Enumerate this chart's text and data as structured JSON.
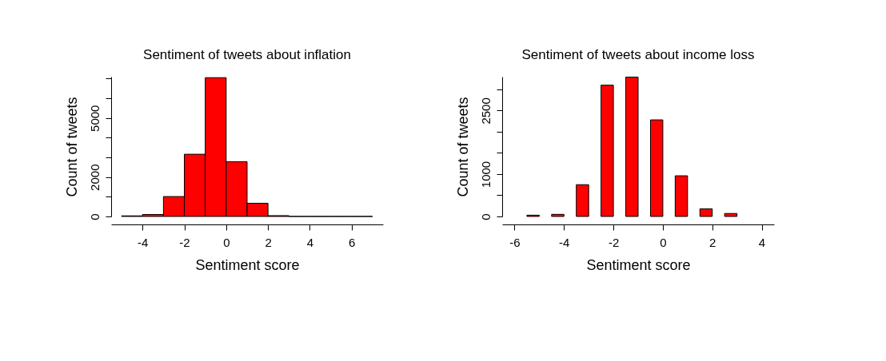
{
  "chart_data": [
    {
      "type": "histogram",
      "title": "Sentiment of tweets about inflation",
      "xlabel": "Sentiment score",
      "ylabel": "Count of tweets",
      "bins": [
        -5,
        -4,
        -3,
        -2,
        -1,
        0,
        1,
        2,
        3,
        4,
        5,
        6,
        7
      ],
      "values": [
        30,
        100,
        1010,
        3160,
        7050,
        2780,
        670,
        40,
        0,
        0,
        0,
        0
      ],
      "colors": [
        "#ff0000",
        "#ff0000",
        "#ff0000",
        "#ff0000",
        "#ff0000",
        "#ff0000",
        "#ff0000",
        "#ff0000",
        "#000000",
        "#000000",
        "#000000",
        "#000000"
      ],
      "xlim": [
        -5.5,
        7.5
      ],
      "xticks": [
        -4,
        -2,
        0,
        2,
        4,
        6
      ],
      "ylim": [
        0,
        7100
      ],
      "yticks": [
        0,
        {
          "value": 1000,
          "label": null
        },
        2000,
        {
          "value": 3000,
          "label": null
        },
        {
          "value": 4000,
          "label": null
        },
        5000,
        {
          "value": 6000,
          "label": null
        },
        {
          "value": 7000,
          "label": null
        }
      ],
      "grid": false
    },
    {
      "type": "bar",
      "title": "Sentiment of tweets about income loss",
      "xlabel": "Sentiment score",
      "ylabel": "Count of tweets",
      "x": [
        -5.25,
        -4.25,
        -3.25,
        -2.25,
        -1.25,
        -0.25,
        0.75,
        1.75,
        2.75
      ],
      "values": [
        30,
        50,
        750,
        3100,
        3290,
        2280,
        960,
        180,
        70
      ],
      "color": "#ff0000",
      "xlim": [
        -6.5,
        4.5
      ],
      "xticks": [
        -6,
        -4,
        -2,
        0,
        2,
        4
      ],
      "ylim": [
        0,
        3300
      ],
      "yticks": [
        0,
        {
          "value": 500,
          "label": null
        },
        1000,
        {
          "value": 1500,
          "label": null
        },
        {
          "value": 2000,
          "label": null
        },
        2500,
        {
          "value": 3000,
          "label": null
        }
      ],
      "grid": false
    }
  ]
}
